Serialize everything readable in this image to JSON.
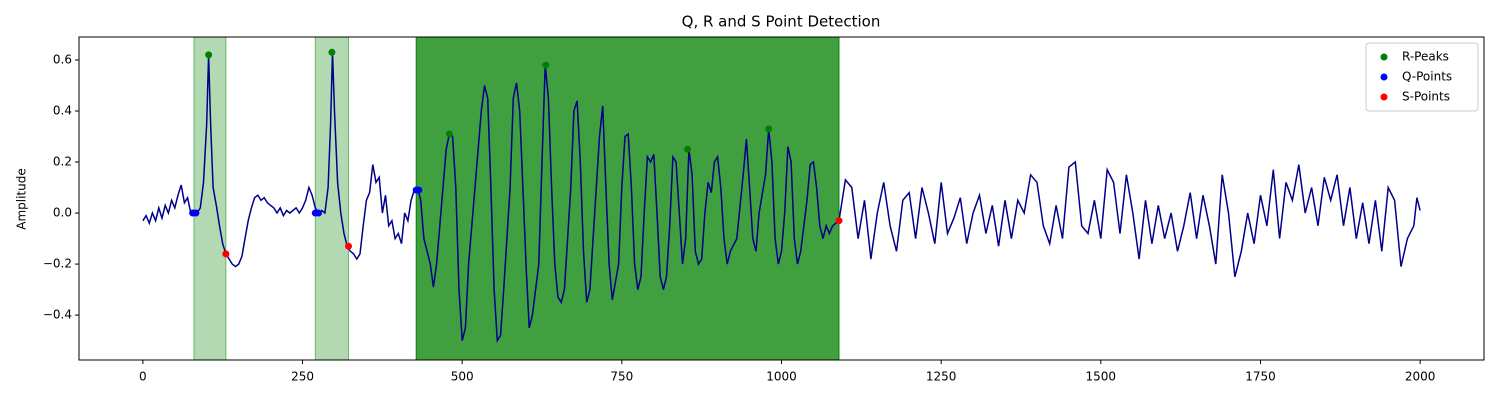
{
  "chart_data": {
    "type": "line",
    "title": "Q, R and S Point Detection",
    "ylabel": "Amplitude",
    "xlim": [
      -100,
      2100
    ],
    "ylim": [
      -0.576,
      0.69
    ],
    "xticks": [
      0,
      250,
      500,
      750,
      1000,
      1250,
      1500,
      1750,
      2000
    ],
    "yticks": [
      {
        "value": -0.4,
        "label": "−0.4"
      },
      {
        "value": -0.2,
        "label": "−0.2"
      },
      {
        "value": 0,
        "label": "0.0"
      },
      0.2,
      0.4,
      0.6
    ],
    "legend": "upper right",
    "spans": [
      {
        "start": 80,
        "end": 130,
        "color": "#008000",
        "opacity": 0.3
      },
      {
        "start": 270,
        "end": 322,
        "color": "#008000",
        "opacity": 0.3
      },
      {
        "start": 428,
        "end": 1090,
        "color": "#008000",
        "opacity": 0.75
      }
    ],
    "line": {
      "color": "#00008b",
      "x": [
        0,
        5,
        10,
        15,
        20,
        25,
        30,
        35,
        40,
        45,
        50,
        55,
        60,
        65,
        70,
        75,
        80,
        85,
        90,
        95,
        100,
        103,
        106,
        110,
        115,
        120,
        125,
        130,
        135,
        140,
        145,
        150,
        155,
        160,
        165,
        170,
        175,
        180,
        185,
        190,
        195,
        200,
        205,
        210,
        215,
        220,
        225,
        230,
        240,
        245,
        250,
        255,
        260,
        265,
        270,
        275,
        280,
        285,
        290,
        294,
        297,
        300,
        305,
        310,
        315,
        320,
        325,
        330,
        335,
        340,
        345,
        350,
        355,
        360,
        365,
        370,
        375,
        380,
        385,
        390,
        395,
        400,
        405,
        410,
        415,
        420,
        425,
        430,
        435,
        440,
        450,
        455,
        460,
        465,
        470,
        475,
        480,
        485,
        490,
        495,
        500,
        505,
        510,
        520,
        530,
        535,
        540,
        545,
        550,
        555,
        560,
        565,
        575,
        580,
        585,
        590,
        595,
        600,
        605,
        610,
        620,
        625,
        630,
        635,
        640,
        645,
        650,
        655,
        660,
        670,
        675,
        680,
        685,
        690,
        695,
        700,
        710,
        715,
        720,
        725,
        730,
        735,
        745,
        750,
        755,
        760,
        765,
        770,
        775,
        780,
        785,
        790,
        795,
        800,
        805,
        810,
        815,
        820,
        825,
        830,
        835,
        840,
        845,
        850,
        855,
        860,
        865,
        870,
        875,
        880,
        885,
        890,
        895,
        900,
        905,
        910,
        915,
        920,
        930,
        940,
        945,
        950,
        955,
        960,
        965,
        975,
        980,
        985,
        990,
        995,
        1000,
        1005,
        1010,
        1015,
        1020,
        1025,
        1030,
        1040,
        1045,
        1050,
        1055,
        1060,
        1065,
        1070,
        1075,
        1080,
        1090,
        1095,
        1100,
        1110,
        1120,
        1130,
        1140,
        1150,
        1160,
        1170,
        1180,
        1190,
        1200,
        1210,
        1220,
        1230,
        1240,
        1250,
        1260,
        1270,
        1280,
        1290,
        1300,
        1310,
        1320,
        1330,
        1340,
        1350,
        1360,
        1370,
        1380,
        1390,
        1400,
        1410,
        1420,
        1430,
        1440,
        1450,
        1460,
        1470,
        1480,
        1490,
        1500,
        1510,
        1520,
        1530,
        1540,
        1550,
        1560,
        1570,
        1580,
        1590,
        1600,
        1610,
        1620,
        1630,
        1640,
        1650,
        1660,
        1670,
        1680,
        1690,
        1700,
        1710,
        1720,
        1730,
        1740,
        1750,
        1760,
        1770,
        1780,
        1790,
        1800,
        1810,
        1820,
        1830,
        1840,
        1850,
        1860,
        1870,
        1880,
        1890,
        1900,
        1910,
        1920,
        1930,
        1940,
        1950,
        1960,
        1970,
        1980,
        1990,
        1995,
        2000
      ],
      "y": [
        -0.03,
        -0.01,
        -0.04,
        0.0,
        -0.03,
        0.02,
        -0.02,
        0.03,
        0.0,
        0.05,
        0.02,
        0.07,
        0.11,
        0.04,
        0.06,
        0.0,
        0.01,
        0.0,
        0.02,
        0.12,
        0.35,
        0.62,
        0.35,
        0.1,
        0.03,
        -0.05,
        -0.12,
        -0.16,
        -0.18,
        -0.2,
        -0.21,
        -0.2,
        -0.17,
        -0.1,
        -0.03,
        0.02,
        0.06,
        0.07,
        0.05,
        0.06,
        0.04,
        0.03,
        0.02,
        0.0,
        0.02,
        -0.01,
        0.01,
        0.0,
        0.02,
        0.0,
        0.02,
        0.05,
        0.1,
        0.07,
        0.02,
        0.0,
        0.01,
        0.0,
        0.1,
        0.35,
        0.63,
        0.4,
        0.12,
        0.0,
        -0.08,
        -0.13,
        -0.15,
        -0.16,
        -0.18,
        -0.16,
        -0.05,
        0.05,
        0.08,
        0.19,
        0.12,
        0.14,
        0.0,
        0.07,
        -0.05,
        -0.03,
        -0.1,
        -0.08,
        -0.12,
        0.0,
        -0.03,
        0.05,
        0.09,
        0.1,
        0.05,
        -0.1,
        -0.2,
        -0.29,
        -0.2,
        -0.05,
        0.1,
        0.25,
        0.31,
        0.3,
        0.1,
        -0.3,
        -0.5,
        -0.45,
        -0.2,
        0.1,
        0.4,
        0.5,
        0.45,
        0.1,
        -0.3,
        -0.5,
        -0.48,
        -0.3,
        0.1,
        0.45,
        0.51,
        0.4,
        0.1,
        -0.2,
        -0.45,
        -0.4,
        -0.2,
        0.2,
        0.58,
        0.45,
        0.1,
        -0.2,
        -0.33,
        -0.35,
        -0.3,
        0.1,
        0.4,
        0.44,
        0.2,
        -0.15,
        -0.35,
        -0.3,
        0.1,
        0.3,
        0.42,
        0.1,
        -0.2,
        -0.34,
        -0.2,
        0.1,
        0.3,
        0.31,
        0.1,
        -0.2,
        -0.3,
        -0.25,
        0.0,
        0.22,
        0.2,
        0.23,
        0.0,
        -0.25,
        -0.3,
        -0.25,
        -0.05,
        0.22,
        0.2,
        0.0,
        -0.2,
        -0.1,
        0.25,
        0.15,
        -0.15,
        -0.2,
        -0.18,
        0.0,
        0.12,
        0.08,
        0.2,
        0.22,
        0.1,
        -0.1,
        -0.2,
        -0.15,
        -0.1,
        0.15,
        0.29,
        0.1,
        -0.1,
        -0.15,
        0.0,
        0.15,
        0.33,
        0.2,
        -0.1,
        -0.2,
        -0.15,
        0.0,
        0.26,
        0.2,
        -0.1,
        -0.2,
        -0.15,
        0.05,
        0.19,
        0.2,
        0.1,
        -0.05,
        -0.1,
        -0.05,
        -0.08,
        -0.05,
        -0.03,
        0.05,
        0.13,
        0.1,
        -0.1,
        0.05,
        -0.18,
        0.0,
        0.12,
        -0.05,
        -0.15,
        0.05,
        0.08,
        -0.1,
        0.1,
        0.0,
        -0.12,
        0.12,
        -0.08,
        -0.02,
        0.06,
        -0.12,
        0.0,
        0.07,
        -0.08,
        0.03,
        -0.13,
        0.05,
        -0.1,
        0.05,
        0.0,
        0.15,
        0.12,
        -0.05,
        -0.12,
        0.03,
        -0.1,
        0.18,
        0.2,
        -0.05,
        -0.08,
        0.05,
        -0.1,
        0.17,
        0.12,
        -0.08,
        0.15,
        0.0,
        -0.18,
        0.05,
        -0.12,
        0.03,
        -0.1,
        0.0,
        -0.15,
        -0.05,
        0.08,
        -0.1,
        0.07,
        -0.05,
        -0.2,
        0.15,
        0.0,
        -0.25,
        -0.15,
        0.0,
        -0.12,
        0.07,
        -0.05,
        0.17,
        -0.1,
        0.12,
        0.05,
        0.19,
        0.0,
        0.1,
        -0.05,
        0.14,
        0.05,
        0.15,
        -0.05,
        0.1,
        -0.1,
        0.04,
        -0.12,
        0.05,
        -0.15,
        0.1,
        0.05,
        -0.21,
        -0.1,
        -0.05,
        0.06,
        0.01
      ]
    },
    "points": [
      {
        "name": "R-Peaks",
        "color": "#008000",
        "x": [
          103,
          296,
          480,
          631,
          853,
          980
        ],
        "y": [
          0.62,
          0.63,
          0.31,
          0.58,
          0.25,
          0.33
        ]
      },
      {
        "name": "Q-Points",
        "color": "#0000ff",
        "x": [
          78,
          83,
          270,
          275,
          428,
          432
        ],
        "y": [
          0.0,
          0.0,
          0.0,
          0.0,
          0.09,
          0.09
        ]
      },
      {
        "name": "S-Points",
        "color": "#ff0000",
        "x": [
          130,
          322,
          1090
        ],
        "y": [
          -0.16,
          -0.13,
          -0.03
        ]
      }
    ]
  }
}
